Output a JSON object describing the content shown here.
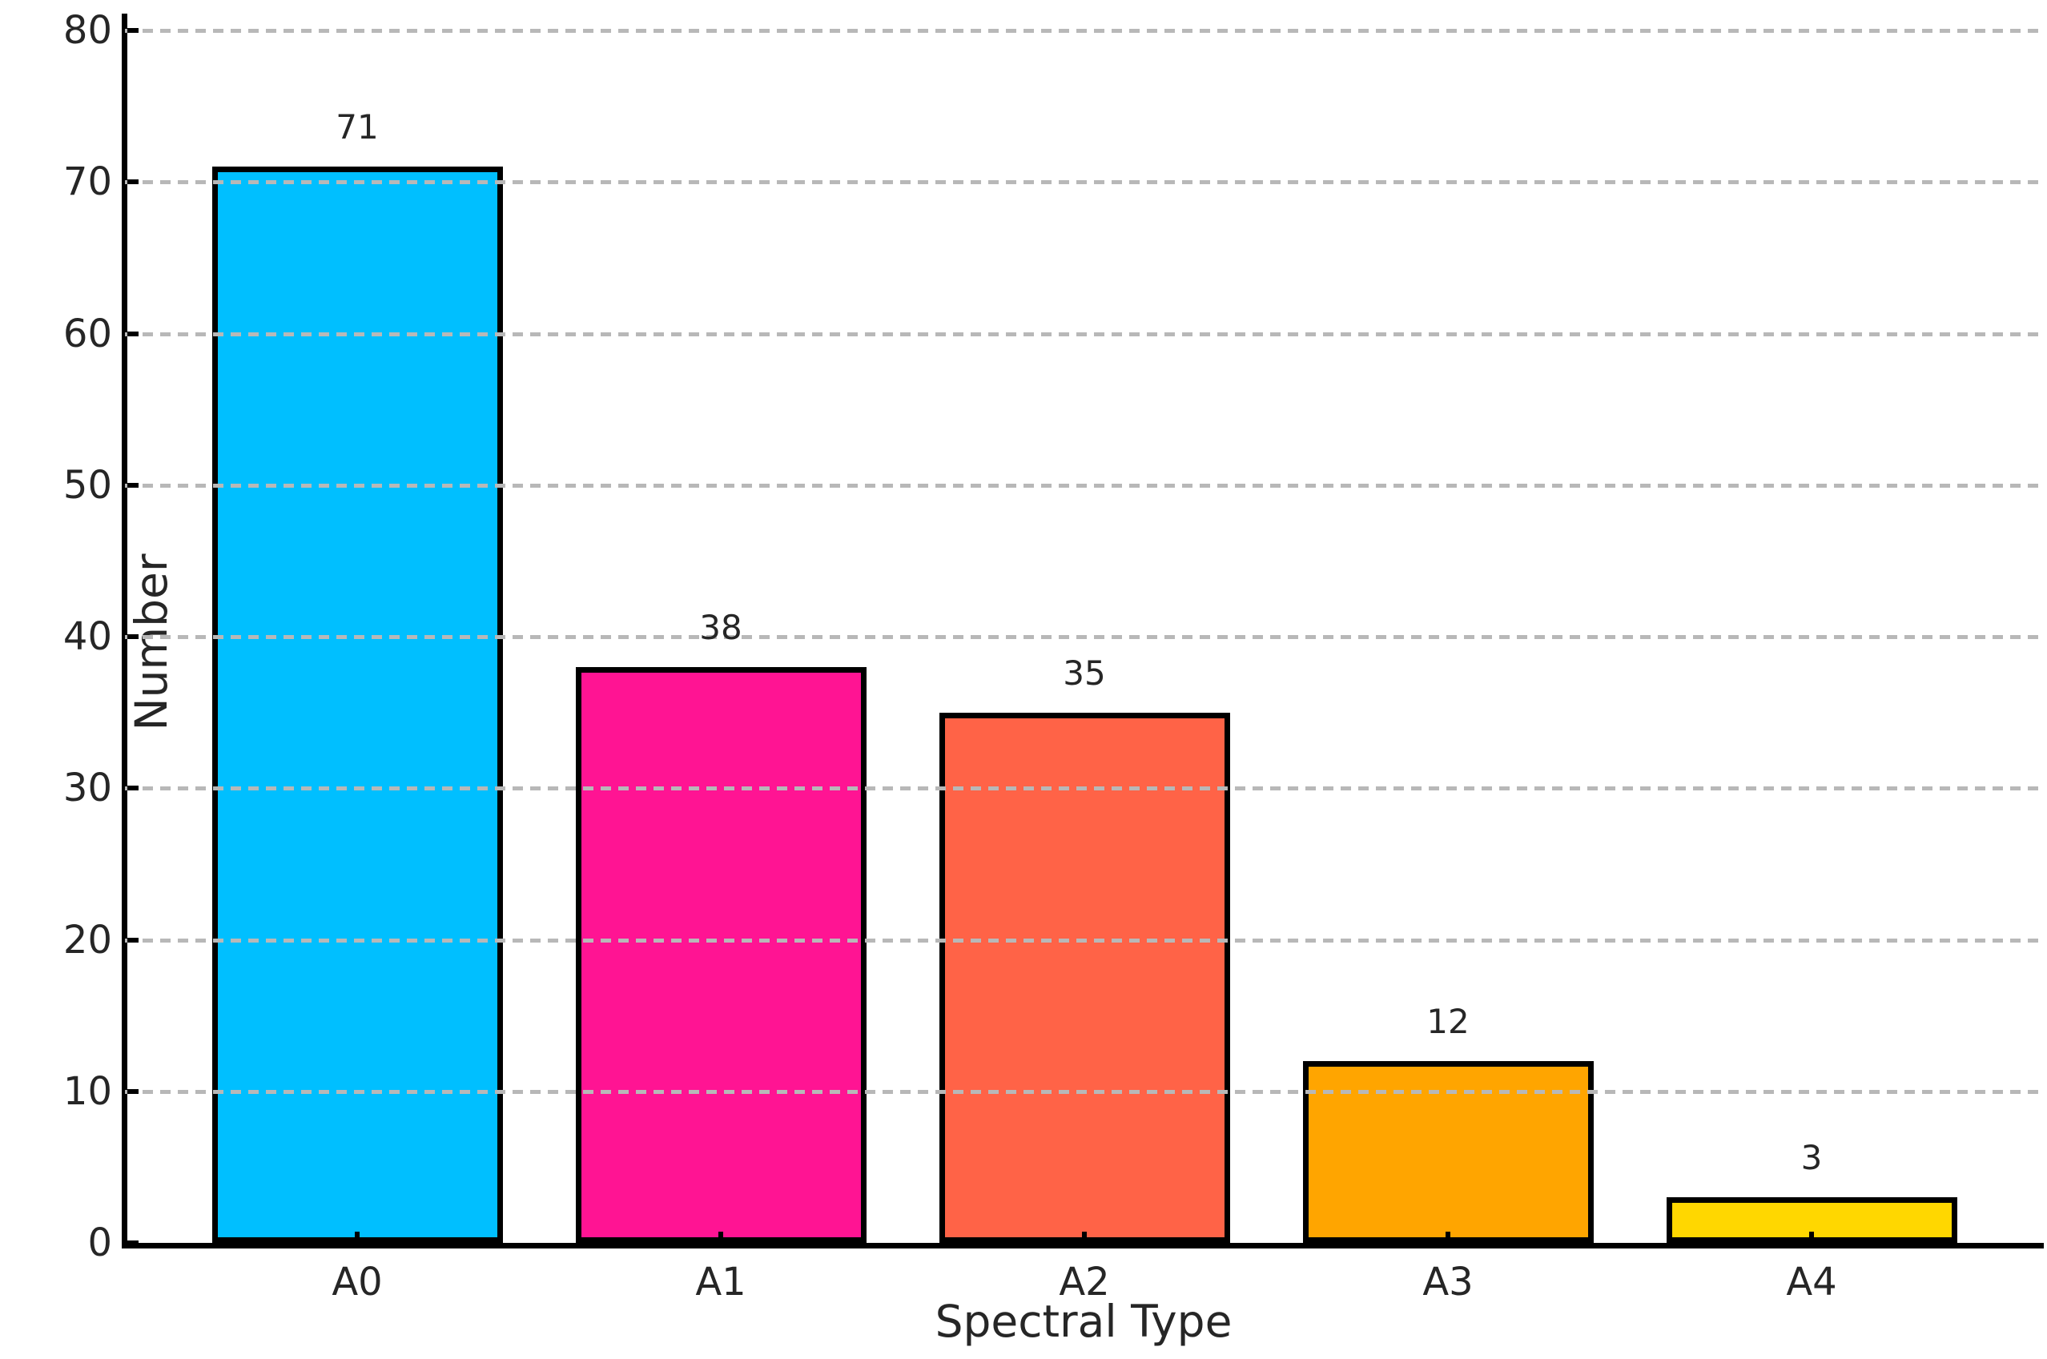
{
  "figure": {
    "background_color": "#ffffff",
    "text_color": "#262626"
  },
  "chart_data": {
    "type": "bar",
    "title": "",
    "xlabel": "Spectral Type",
    "ylabel": "Number",
    "categories": [
      "A0",
      "A1",
      "A2",
      "A3",
      "A4"
    ],
    "values": [
      71,
      38,
      35,
      12,
      3
    ],
    "bar_colors": [
      "#00BFFF",
      "#FF1493",
      "#FF6347",
      "#FFA500",
      "#FFD700"
    ],
    "bar_edge_color": "#000000",
    "ylim": [
      0,
      80
    ],
    "yticks": [
      0,
      10,
      20,
      30,
      40,
      50,
      60,
      70,
      80
    ],
    "grid": {
      "axis": "y",
      "line_style": "dashed",
      "color": "#b8b8b8",
      "drawn_above_bars": true
    },
    "legend": "none",
    "spines": [
      "left",
      "bottom"
    ],
    "tick_direction": "in"
  }
}
